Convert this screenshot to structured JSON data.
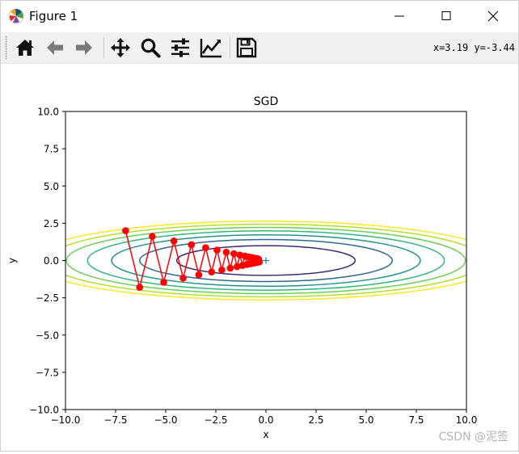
{
  "window": {
    "title": "Figure 1",
    "controls": [
      "minimize",
      "maximize",
      "close"
    ]
  },
  "toolbar": {
    "tools": [
      {
        "name": "home-icon",
        "tooltip": "Reset original view"
      },
      {
        "name": "back-icon",
        "tooltip": "Back to previous view"
      },
      {
        "name": "forward-icon",
        "tooltip": "Forward to next view"
      },
      {
        "name": "pan-icon",
        "tooltip": "Pan axes"
      },
      {
        "name": "zoom-icon",
        "tooltip": "Zoom to rectangle"
      },
      {
        "name": "subplots-icon",
        "tooltip": "Configure subplots"
      },
      {
        "name": "lines-icon",
        "tooltip": "Edit axis, curve and image parameters"
      },
      {
        "name": "save-icon",
        "tooltip": "Save the figure"
      }
    ],
    "coords": "x=3.19 y=-3.44"
  },
  "watermark": "CSDN @泥签",
  "chart_data": {
    "type": "line",
    "title": "SGD",
    "xlabel": "x",
    "ylabel": "y",
    "xlim": [
      -10,
      10
    ],
    "ylim": [
      -10,
      10
    ],
    "xticks": [
      "−10.0",
      "−7.5",
      "−5.0",
      "−2.5",
      "0.0",
      "2.5",
      "5.0",
      "7.5",
      "10.0"
    ],
    "yticks": [
      "−10.0",
      "−7.5",
      "−5.0",
      "−2.5",
      "0.0",
      "2.5",
      "5.0",
      "7.5",
      "10.0"
    ],
    "grid": false,
    "contour": {
      "function": "x^2/20 + y^2",
      "levels": [
        {
          "rx": 4.45,
          "ry": 0.995,
          "color": "#3b2a78"
        },
        {
          "rx": 6.3,
          "ry": 1.41,
          "color": "#31688e"
        },
        {
          "rx": 7.7,
          "ry": 1.72,
          "color": "#21918c"
        },
        {
          "rx": 8.9,
          "ry": 1.99,
          "color": "#35b779"
        },
        {
          "rx": 9.95,
          "ry": 2.22,
          "color": "#6dcd59"
        },
        {
          "rx": 10.9,
          "ry": 2.44,
          "color": "#b5de2b"
        },
        {
          "rx": 11.8,
          "ry": 2.64,
          "color": "#fde725"
        }
      ]
    },
    "minimum_marker": {
      "x": 0,
      "y": 0,
      "symbol": "+",
      "color": "#1f77b4"
    },
    "series": [
      {
        "color": "#ff0000",
        "marker": "o",
        "x": [
          -7.0,
          -6.3,
          -5.67,
          -5.1,
          -4.59,
          -4.13,
          -3.72,
          -3.35,
          -3.01,
          -2.71,
          -2.44,
          -2.2,
          -1.98,
          -1.78,
          -1.6,
          -1.44,
          -1.3,
          -1.17,
          -1.05,
          -0.95,
          -0.85,
          -0.77,
          -0.69,
          -0.62,
          -0.56,
          -0.5,
          -0.45,
          -0.41,
          -0.37,
          -0.33
        ],
        "y": [
          2.0,
          -1.8,
          1.62,
          -1.46,
          1.31,
          -1.18,
          1.06,
          -0.96,
          0.86,
          -0.77,
          0.7,
          -0.63,
          0.56,
          -0.51,
          0.46,
          -0.41,
          0.37,
          -0.33,
          0.3,
          -0.27,
          0.24,
          -0.22,
          0.2,
          -0.18,
          0.16,
          -0.14,
          0.13,
          -0.12,
          0.1,
          -0.09
        ]
      }
    ]
  }
}
